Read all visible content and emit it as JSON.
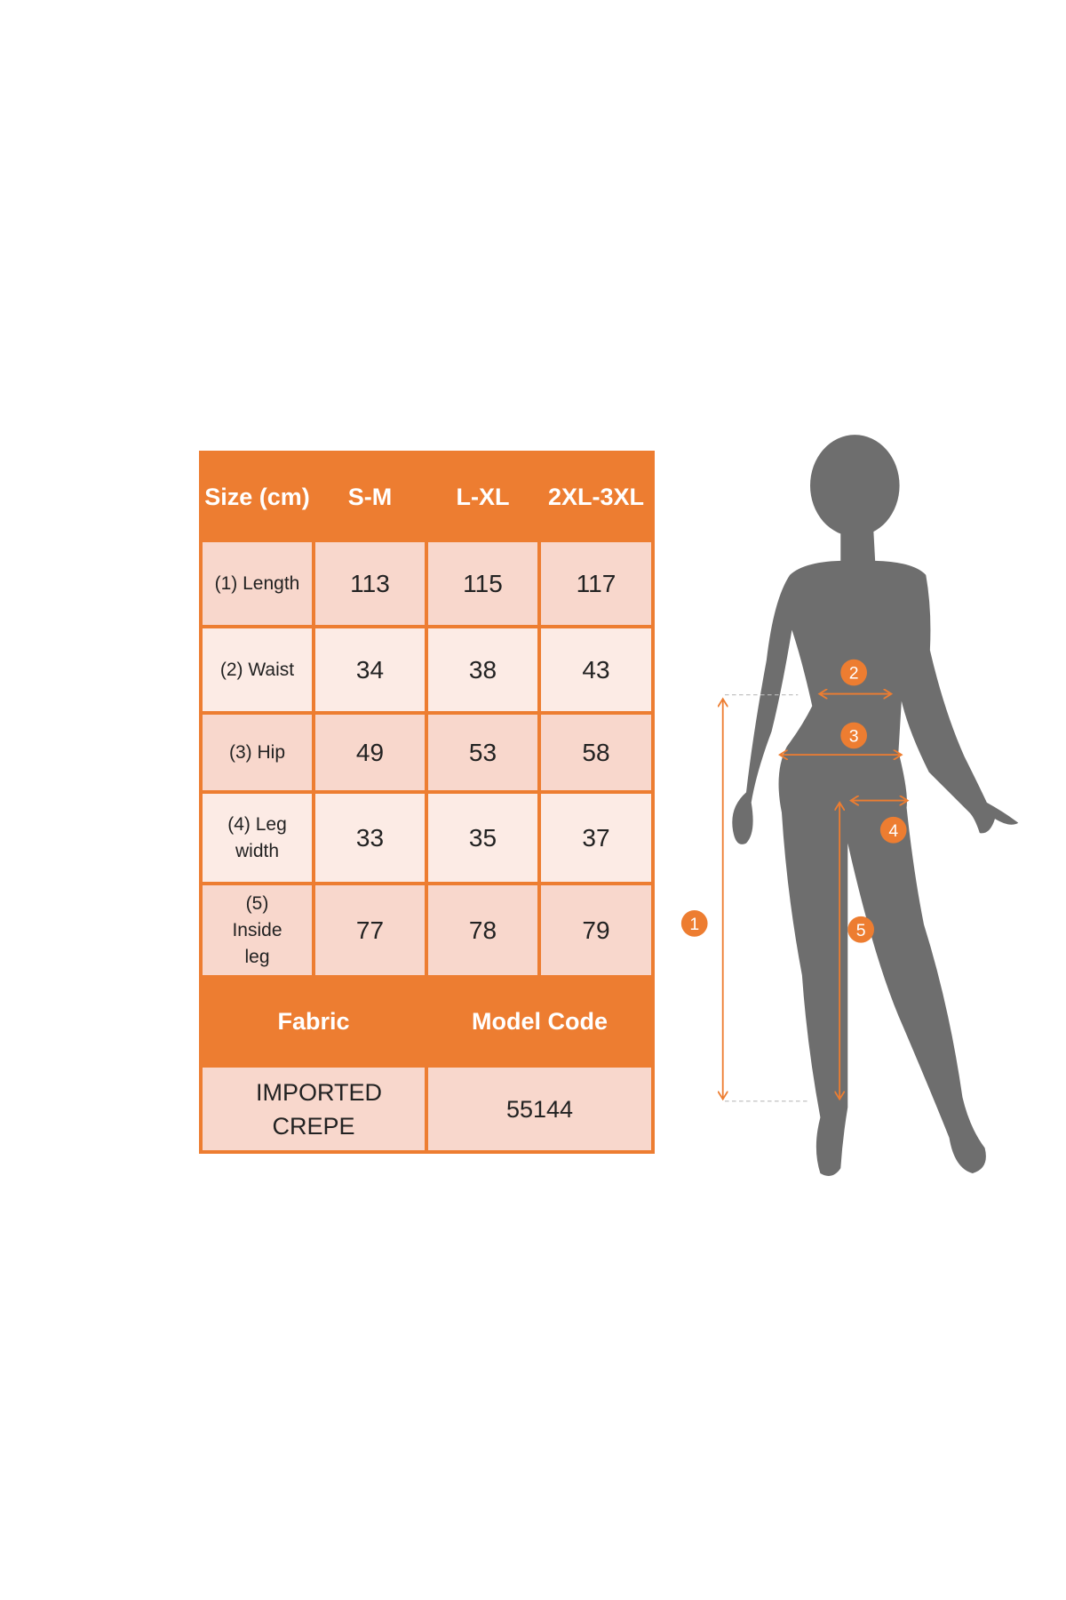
{
  "colors": {
    "accent": "#ED7D31",
    "cell_dark": "#F8D7CC",
    "cell_light": "#FCEBE5",
    "silhouette": "#6E6E6E"
  },
  "table": {
    "header": [
      "Size (cm)",
      "S-M",
      "L-XL",
      "2XL-3XL"
    ],
    "rows": [
      {
        "label": "(1) Length",
        "values": [
          "113",
          "115",
          "117"
        ]
      },
      {
        "label": "(2) Waist",
        "values": [
          "34",
          "38",
          "43"
        ]
      },
      {
        "label": "(3) Hip",
        "values": [
          "49",
          "53",
          "58"
        ]
      },
      {
        "label": "(4) Leg width",
        "values": [
          "33",
          "35",
          "37"
        ]
      },
      {
        "label": "(5) Inside leg",
        "values": [
          "77",
          "78",
          "79"
        ]
      }
    ],
    "footer_header": [
      "Fabric",
      "Model Code"
    ],
    "footer_values": [
      "IMPORTED CREPE",
      "55144"
    ]
  },
  "figure": {
    "markers": [
      "1",
      "2",
      "3",
      "4",
      "5"
    ]
  }
}
